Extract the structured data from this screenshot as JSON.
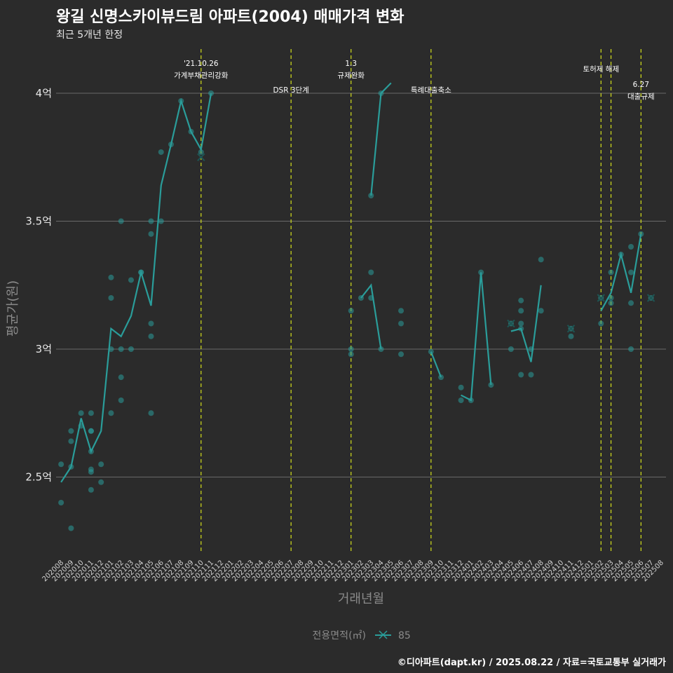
{
  "title": "왕길 신명스카이뷰드림 아파트(2004) 매매가격 변화",
  "subtitle": "최근 5개년 한정",
  "caption": "©디아파트(dapt.kr) / 2025.08.22 / 자료=국토교통부 실거래가",
  "colors": {
    "background": "#2b2b2b",
    "series": "#2a9d9a",
    "vline": "#d4e01c",
    "grid": "#6a6a6a"
  },
  "chart_data": {
    "type": "line",
    "xlabel": "거래년월",
    "ylabel": "평균가(원)",
    "ylim": [
      2.2,
      4.2
    ],
    "y_ticks": [
      {
        "value": 2.5,
        "label": "2.5억"
      },
      {
        "value": 3.0,
        "label": "3억"
      },
      {
        "value": 3.5,
        "label": "3.5억"
      },
      {
        "value": 4.0,
        "label": "4억"
      }
    ],
    "categories": [
      "202008",
      "202009",
      "202010",
      "202011",
      "202012",
      "202101",
      "202102",
      "202103",
      "202104",
      "202105",
      "202106",
      "202107",
      "202108",
      "202109",
      "202110",
      "202111",
      "202112",
      "202201",
      "202202",
      "202203",
      "202204",
      "202205",
      "202206",
      "202207",
      "202208",
      "202209",
      "202210",
      "202211",
      "202212",
      "202301",
      "202302",
      "202303",
      "202304",
      "202305",
      "202306",
      "202307",
      "202308",
      "202309",
      "202310",
      "202311",
      "202312",
      "202401",
      "202402",
      "202403",
      "202404",
      "202405",
      "202406",
      "202407",
      "202408",
      "202409",
      "202410",
      "202411",
      "202412",
      "202501",
      "202502",
      "202503",
      "202504",
      "202505",
      "202506",
      "202507",
      "202508"
    ],
    "legend": {
      "title": "전용면적(㎡)",
      "items": [
        "85"
      ]
    },
    "series": [
      {
        "name": "85",
        "line": [
          [
            [
              "202008",
              2.48
            ],
            [
              "202009",
              2.54
            ],
            [
              "202010",
              2.73
            ],
            [
              "202011",
              2.6
            ],
            [
              "202012",
              2.68
            ],
            [
              "202101",
              3.08
            ],
            [
              "202102",
              3.05
            ],
            [
              "202103",
              3.13
            ],
            [
              "202104",
              3.3
            ],
            [
              "202105",
              3.17
            ],
            [
              "202106",
              3.64
            ],
            [
              "202107",
              3.8
            ],
            [
              "202108",
              3.97
            ],
            [
              "202109",
              3.85
            ],
            [
              "202110",
              3.78
            ],
            [
              "202111",
              4.0
            ]
          ],
          [
            [
              "202303",
              3.6
            ],
            [
              "202304",
              4.0
            ],
            [
              "202305",
              4.04
            ]
          ],
          [
            [
              "202302",
              3.2
            ],
            [
              "202303",
              3.25
            ],
            [
              "202304",
              3.0
            ]
          ],
          [
            [
              "202309",
              2.99
            ],
            [
              "202310",
              2.89
            ]
          ],
          [
            [
              "202312",
              2.82
            ],
            [
              "202401",
              2.8
            ],
            [
              "202402",
              3.3
            ],
            [
              "202403",
              2.86
            ]
          ],
          [
            [
              "202405",
              3.07
            ],
            [
              "202406",
              3.08
            ],
            [
              "202407",
              2.95
            ],
            [
              "202408",
              3.25
            ]
          ],
          [
            [
              "202502",
              3.15
            ],
            [
              "202503",
              3.22
            ],
            [
              "202504",
              3.37
            ],
            [
              "202505",
              3.22
            ],
            [
              "202506",
              3.45
            ]
          ]
        ],
        "points": [
          [
            "202008",
            2.55
          ],
          [
            "202008",
            2.4
          ],
          [
            "202009",
            2.68
          ],
          [
            "202009",
            2.64
          ],
          [
            "202009",
            2.54
          ],
          [
            "202009",
            2.3
          ],
          [
            "202010",
            2.75
          ],
          [
            "202010",
            2.7
          ],
          [
            "202011",
            2.75
          ],
          [
            "202011",
            2.68
          ],
          [
            "202011",
            2.68
          ],
          [
            "202011",
            2.6
          ],
          [
            "202011",
            2.53
          ],
          [
            "202011",
            2.52
          ],
          [
            "202011",
            2.45
          ],
          [
            "202012",
            2.55
          ],
          [
            "202012",
            2.48
          ],
          [
            "202101",
            3.28
          ],
          [
            "202101",
            3.2
          ],
          [
            "202101",
            3.0
          ],
          [
            "202101",
            2.75
          ],
          [
            "202102",
            3.5
          ],
          [
            "202102",
            3.0
          ],
          [
            "202102",
            2.89
          ],
          [
            "202102",
            2.8
          ],
          [
            "202103",
            3.27
          ],
          [
            "202103",
            3.0
          ],
          [
            "202104",
            3.3
          ],
          [
            "202104",
            3.3
          ],
          [
            "202105",
            3.5
          ],
          [
            "202105",
            3.45
          ],
          [
            "202105",
            3.1
          ],
          [
            "202105",
            3.05
          ],
          [
            "202105",
            2.75
          ],
          [
            "202106",
            3.77
          ],
          [
            "202106",
            3.5
          ],
          [
            "202107",
            3.8
          ],
          [
            "202108",
            3.97
          ],
          [
            "202109",
            3.85
          ],
          [
            "202110",
            3.77
          ],
          [
            "202111",
            4.0
          ],
          [
            "202303",
            3.6
          ],
          [
            "202304",
            4.0
          ],
          [
            "202301",
            3.15
          ],
          [
            "202301",
            3.0
          ],
          [
            "202301",
            2.98
          ],
          [
            "202302",
            3.2
          ],
          [
            "202303",
            3.3
          ],
          [
            "202303",
            3.2
          ],
          [
            "202304",
            3.0
          ],
          [
            "202306",
            3.15
          ],
          [
            "202306",
            3.1
          ],
          [
            "202306",
            2.98
          ],
          [
            "202309",
            2.99
          ],
          [
            "202310",
            2.89
          ],
          [
            "202312",
            2.85
          ],
          [
            "202312",
            2.8
          ],
          [
            "202401",
            2.8
          ],
          [
            "202402",
            3.3
          ],
          [
            "202403",
            2.86
          ],
          [
            "202405",
            3.1
          ],
          [
            "202405",
            3.0
          ],
          [
            "202406",
            3.19
          ],
          [
            "202406",
            3.15
          ],
          [
            "202406",
            3.1
          ],
          [
            "202406",
            3.08
          ],
          [
            "202406",
            2.9
          ],
          [
            "202407",
            3.0
          ],
          [
            "202407",
            2.9
          ],
          [
            "202408",
            3.35
          ],
          [
            "202408",
            3.15
          ],
          [
            "202411",
            3.08
          ],
          [
            "202411",
            3.05
          ],
          [
            "202502",
            3.2
          ],
          [
            "202502",
            3.1
          ],
          [
            "202503",
            3.3
          ],
          [
            "202503",
            3.2
          ],
          [
            "202503",
            3.18
          ],
          [
            "202504",
            3.37
          ],
          [
            "202505",
            3.4
          ],
          [
            "202505",
            3.3
          ],
          [
            "202505",
            3.18
          ],
          [
            "202505",
            3.0
          ],
          [
            "202506",
            3.45
          ],
          [
            "202507",
            3.2
          ]
        ],
        "cross_markers": [
          [
            "202110",
            3.75
          ],
          [
            "202405",
            3.1
          ],
          [
            "202411",
            3.08
          ],
          [
            "202502",
            3.2
          ],
          [
            "202507",
            3.2
          ]
        ]
      }
    ],
    "vlines": [
      {
        "x": "202110",
        "label": [
          "'21.10.26",
          "가계부채관리강화"
        ]
      },
      {
        "x": "202207",
        "label": [
          "DSR 3단계"
        ]
      },
      {
        "x": "202301",
        "label": [
          "1.3",
          "규제완화"
        ]
      },
      {
        "x": "202309",
        "label": [
          "특례대출축소"
        ]
      },
      {
        "x": "202502",
        "label": [
          "토허제 해제"
        ]
      },
      {
        "x": "202503",
        "label": []
      },
      {
        "x": "202506",
        "label": [
          "6.27",
          "대출규제"
        ]
      }
    ]
  }
}
